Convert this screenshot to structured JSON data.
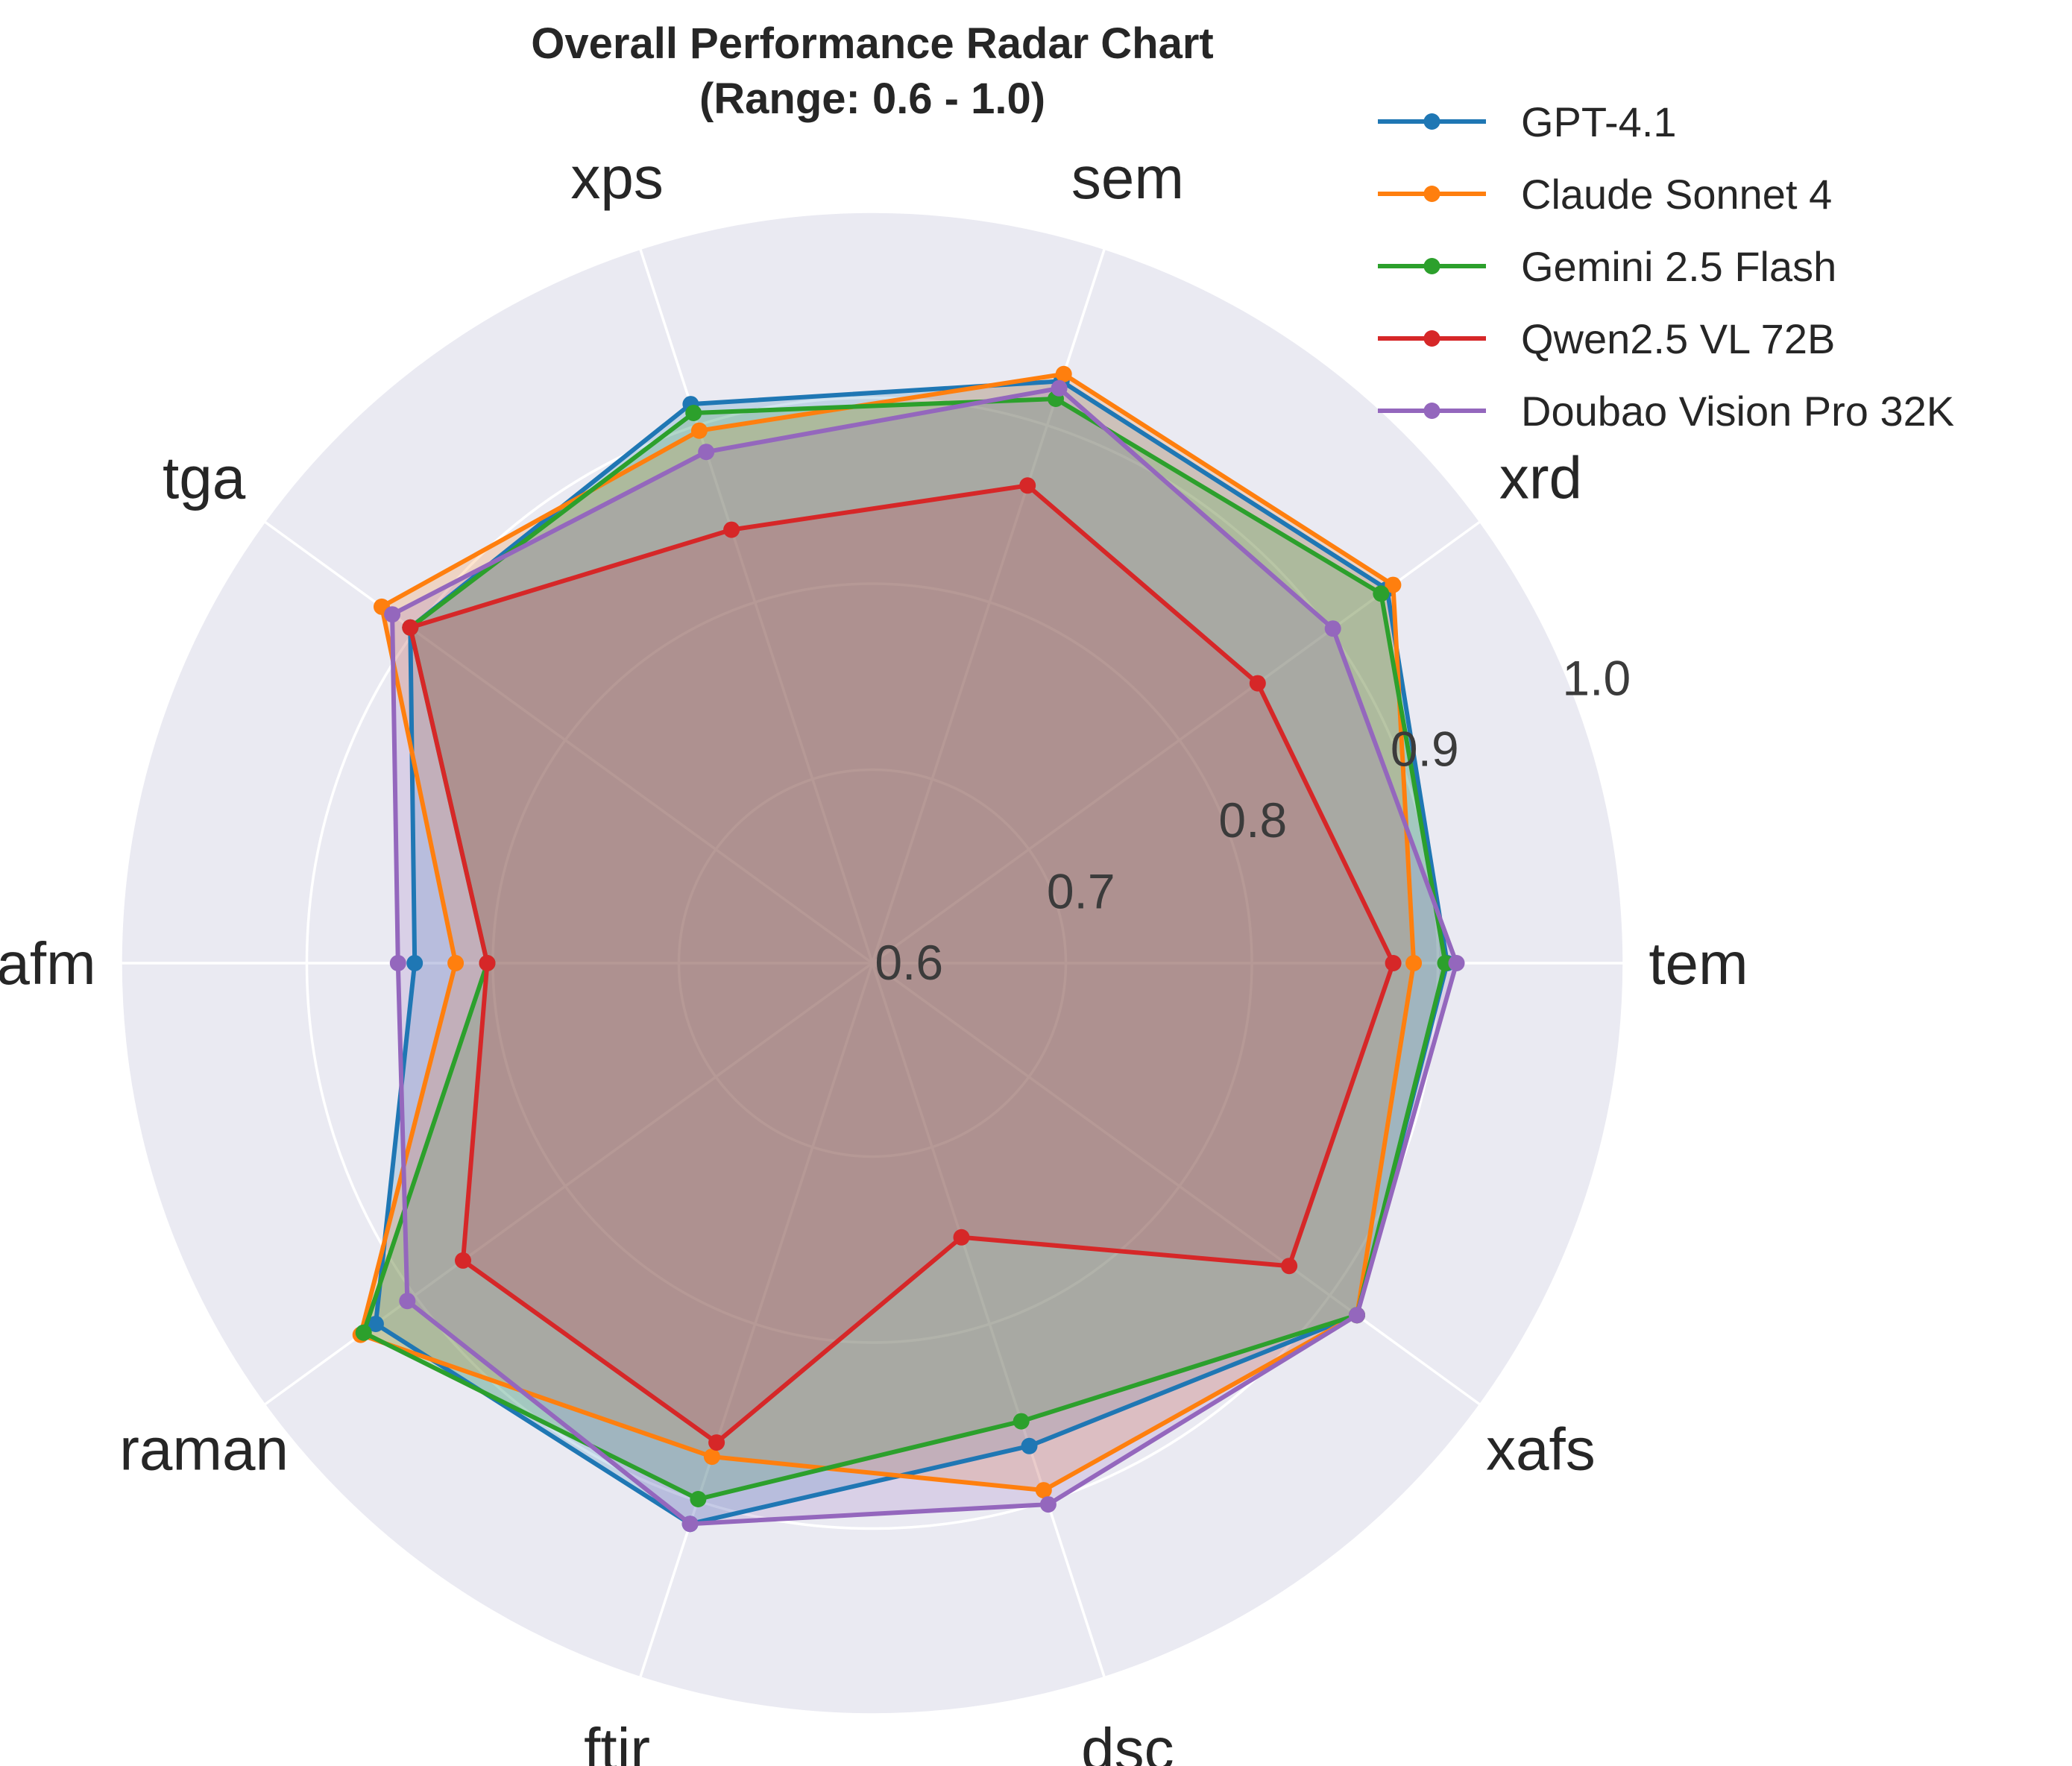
{
  "chart_data": {
    "type": "radar",
    "title": "Overall Performance Radar Chart",
    "subtitle": "(Range: 0.6 - 1.0)",
    "categories": [
      "tem",
      "xrd",
      "sem",
      "xps",
      "tga",
      "afm",
      "raman",
      "ftir",
      "dsc",
      "xafs"
    ],
    "rlim": [
      0.6,
      1.0
    ],
    "rticks": [
      0.6,
      0.7,
      0.8,
      0.9,
      1.0
    ],
    "rtick_labels": [
      "0.6",
      "0.7",
      "0.8",
      "0.9",
      "1.0"
    ],
    "legend_position": "top-right",
    "grid": true,
    "series": [
      {
        "name": "GPT-4.1",
        "color": "#1f77b4",
        "values": [
          0.905,
          0.938,
          0.925,
          0.912,
          0.903,
          0.842,
          0.926,
          0.913,
          0.869,
          0.918
        ]
      },
      {
        "name": "Claude Sonnet 4",
        "color": "#ff7f0e",
        "values": [
          0.887,
          0.942,
          0.929,
          0.897,
          0.922,
          0.82,
          0.936,
          0.875,
          0.894,
          0.918
        ]
      },
      {
        "name": "Gemini 2.5 Flash",
        "color": "#2ca02c",
        "values": [
          0.904,
          0.934,
          0.915,
          0.907,
          0.903,
          0.803,
          0.934,
          0.899,
          0.855,
          0.918
        ]
      },
      {
        "name": "Qwen2.5 VL 72B",
        "color": "#d62728",
        "values": [
          0.876,
          0.852,
          0.866,
          0.841,
          0.903,
          0.803,
          0.868,
          0.867,
          0.751,
          0.873
        ]
      },
      {
        "name": "Doubao Vision Pro 32K",
        "color": "#9467bd",
        "values": [
          0.91,
          0.902,
          0.921,
          0.885,
          0.915,
          0.851,
          0.905,
          0.913,
          0.902,
          0.918
        ]
      }
    ]
  }
}
